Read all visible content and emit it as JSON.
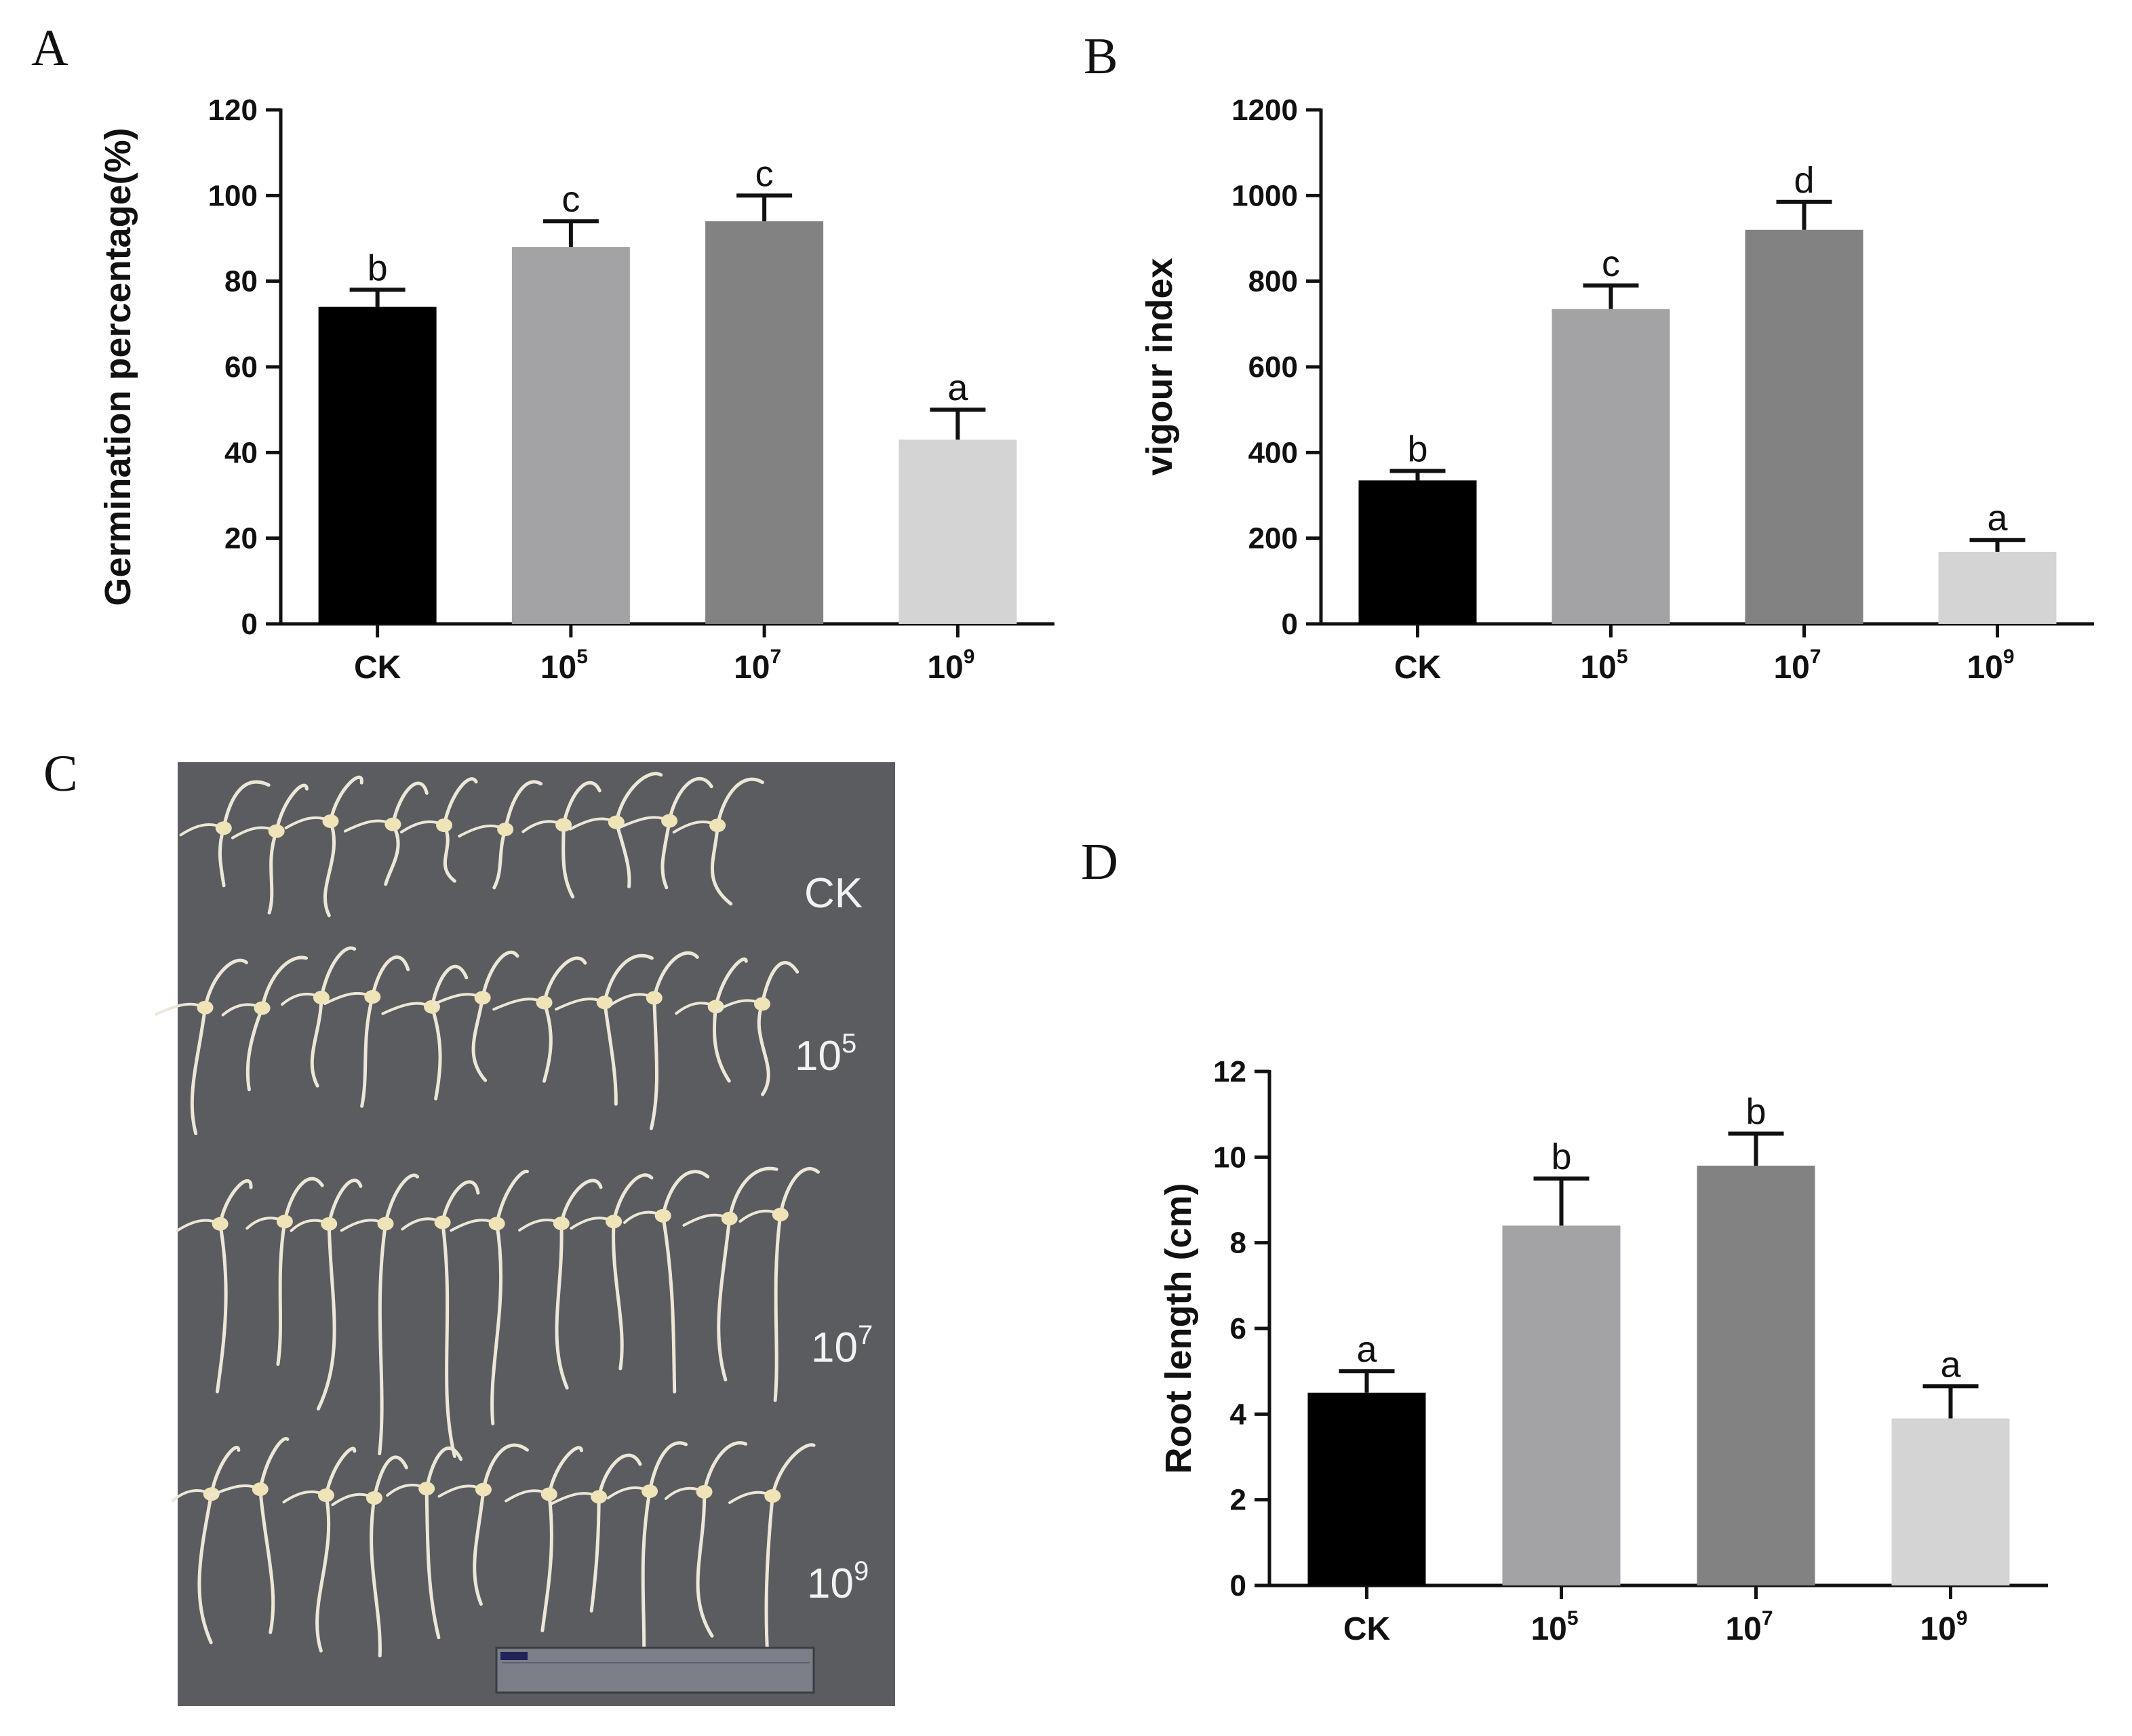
{
  "panels": {
    "A": "A",
    "B": "B",
    "C": "C",
    "D": "D"
  },
  "colors": {
    "CK": "#000000",
    "10^5": "#a3a3a6",
    "10^7": "#828282",
    "10^9": "#d4d4d4",
    "photo_background": "#5b5c60",
    "seedling": "#ece7d6"
  },
  "photo": {
    "labels": [
      {
        "base": "CK",
        "sup": ""
      },
      {
        "base": "10",
        "sup": "5"
      },
      {
        "base": "10",
        "sup": "7"
      },
      {
        "base": "10",
        "sup": "9"
      }
    ],
    "ruler": true
  },
  "chart_data": [
    {
      "panel": "A",
      "type": "bar",
      "ylabel": "Germination percentage(%)",
      "xlabel": "",
      "ylim": [
        0,
        120
      ],
      "yticks": [
        0,
        20,
        40,
        60,
        80,
        100,
        120
      ],
      "categories": [
        {
          "base": "CK",
          "sup": ""
        },
        {
          "base": "10",
          "sup": "5"
        },
        {
          "base": "10",
          "sup": "7"
        },
        {
          "base": "10",
          "sup": "9"
        }
      ],
      "values": [
        74,
        88,
        94,
        43
      ],
      "errors": [
        4,
        6,
        6,
        7
      ],
      "significance": [
        "b",
        "c",
        "c",
        "a"
      ],
      "grid": false
    },
    {
      "panel": "B",
      "type": "bar",
      "ylabel": "vigour index",
      "xlabel": "",
      "ylim": [
        0,
        1200
      ],
      "yticks": [
        0,
        200,
        400,
        600,
        800,
        1000,
        1200
      ],
      "categories": [
        {
          "base": "CK",
          "sup": ""
        },
        {
          "base": "10",
          "sup": "5"
        },
        {
          "base": "10",
          "sup": "7"
        },
        {
          "base": "10",
          "sup": "9"
        }
      ],
      "values": [
        335,
        735,
        920,
        168
      ],
      "errors": [
        22,
        55,
        65,
        28
      ],
      "significance": [
        "b",
        "c",
        "d",
        "a"
      ],
      "grid": false
    },
    {
      "panel": "D",
      "type": "bar",
      "ylabel": "Root length (cm)",
      "xlabel": "",
      "ylim": [
        0,
        12
      ],
      "yticks": [
        0,
        2,
        4,
        6,
        8,
        10,
        12
      ],
      "categories": [
        {
          "base": "CK",
          "sup": ""
        },
        {
          "base": "10",
          "sup": "5"
        },
        {
          "base": "10",
          "sup": "7"
        },
        {
          "base": "10",
          "sup": "9"
        }
      ],
      "values": [
        4.5,
        8.4,
        9.8,
        3.9
      ],
      "errors": [
        0.5,
        1.1,
        0.75,
        0.75
      ],
      "significance": [
        "a",
        "b",
        "b",
        "a"
      ],
      "grid": false
    }
  ]
}
